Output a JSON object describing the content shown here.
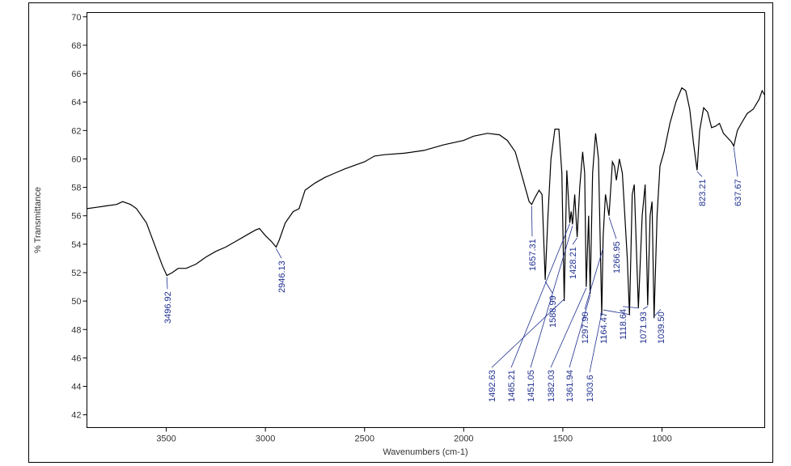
{
  "chart_data": {
    "type": "line",
    "x_label": "Wavenumbers (cm-1)",
    "y_label": "% Transmittance",
    "color": "#000000",
    "annotation_color": "#1f2f8f",
    "xlim": [
      3900,
      482
    ],
    "ylim": [
      41.1,
      70.3
    ],
    "xticks": [
      3500,
      3000,
      2500,
      2000,
      1500,
      1000
    ],
    "yticks": [
      42,
      44,
      46,
      48,
      50,
      52,
      54,
      56,
      58,
      60,
      62,
      64,
      66,
      68,
      70
    ],
    "x": [
      3900,
      3850,
      3800,
      3750,
      3720,
      3680,
      3650,
      3600,
      3560,
      3520,
      3497,
      3470,
      3440,
      3400,
      3350,
      3300,
      3250,
      3200,
      3150,
      3100,
      3050,
      3030,
      3000,
      2970,
      2946,
      2930,
      2900,
      2860,
      2830,
      2800,
      2750,
      2700,
      2650,
      2600,
      2500,
      2450,
      2400,
      2300,
      2200,
      2100,
      2000,
      1950,
      1880,
      1820,
      1780,
      1740,
      1700,
      1670,
      1657,
      1640,
      1620,
      1605,
      1589,
      1575,
      1560,
      1540,
      1520,
      1505,
      1493,
      1480,
      1465,
      1458,
      1451,
      1440,
      1428,
      1415,
      1400,
      1390,
      1382,
      1370,
      1362,
      1350,
      1335,
      1320,
      1304,
      1297,
      1285,
      1267,
      1250,
      1240,
      1230,
      1215,
      1200,
      1175,
      1164,
      1150,
      1140,
      1119,
      1100,
      1085,
      1072,
      1060,
      1050,
      1040,
      1025,
      1010,
      990,
      960,
      930,
      900,
      880,
      860,
      840,
      823,
      810,
      790,
      770,
      750,
      730,
      710,
      690,
      670,
      650,
      638,
      620,
      600,
      570,
      540,
      510,
      495,
      482
    ],
    "values": [
      56.5,
      56.6,
      56.7,
      56.8,
      57.0,
      56.8,
      56.5,
      55.5,
      54.0,
      52.5,
      51.8,
      52.0,
      52.3,
      52.3,
      52.6,
      53.1,
      53.5,
      53.8,
      54.2,
      54.6,
      55.0,
      55.1,
      54.6,
      54.2,
      53.8,
      54.3,
      55.5,
      56.3,
      56.5,
      57.8,
      58.3,
      58.7,
      59.0,
      59.3,
      59.8,
      60.2,
      60.3,
      60.4,
      60.6,
      61.0,
      61.3,
      61.6,
      61.8,
      61.7,
      61.3,
      60.5,
      58.5,
      57.0,
      56.8,
      57.3,
      57.8,
      57.5,
      51.5,
      56.0,
      60.0,
      62.1,
      62.1,
      59.0,
      50.0,
      59.2,
      55.5,
      56.3,
      55.4,
      57.5,
      54.5,
      58.0,
      60.5,
      59.0,
      51.0,
      56.0,
      50.5,
      59.0,
      61.8,
      60.0,
      49.0,
      54.5,
      57.5,
      56.0,
      59.8,
      59.5,
      58.5,
      60.0,
      59.0,
      53.0,
      49.0,
      57.5,
      58.2,
      49.5,
      56.0,
      58.2,
      49.7,
      56.0,
      57.0,
      48.8,
      56.0,
      59.5,
      60.5,
      62.5,
      64.0,
      65.0,
      64.8,
      63.5,
      61.0,
      59.2,
      62.0,
      63.6,
      63.3,
      62.2,
      62.3,
      62.5,
      61.8,
      61.5,
      61.2,
      60.9,
      62.0,
      62.5,
      63.2,
      63.5,
      64.2,
      64.8,
      64.5
    ],
    "annotations": [
      3496.92,
      2946.13,
      1657.31,
      1588.99,
      1428.21,
      1266.95,
      823.21,
      637.67,
      1492.63,
      1465.21,
      1451.05,
      1382.03,
      1361.94,
      1303.6,
      {
        "value": 1297.9,
        "label": "1297.90"
      },
      1164.47,
      1118.64,
      1071.93,
      {
        "value": 1039.5,
        "label": "1039.50"
      }
    ]
  }
}
